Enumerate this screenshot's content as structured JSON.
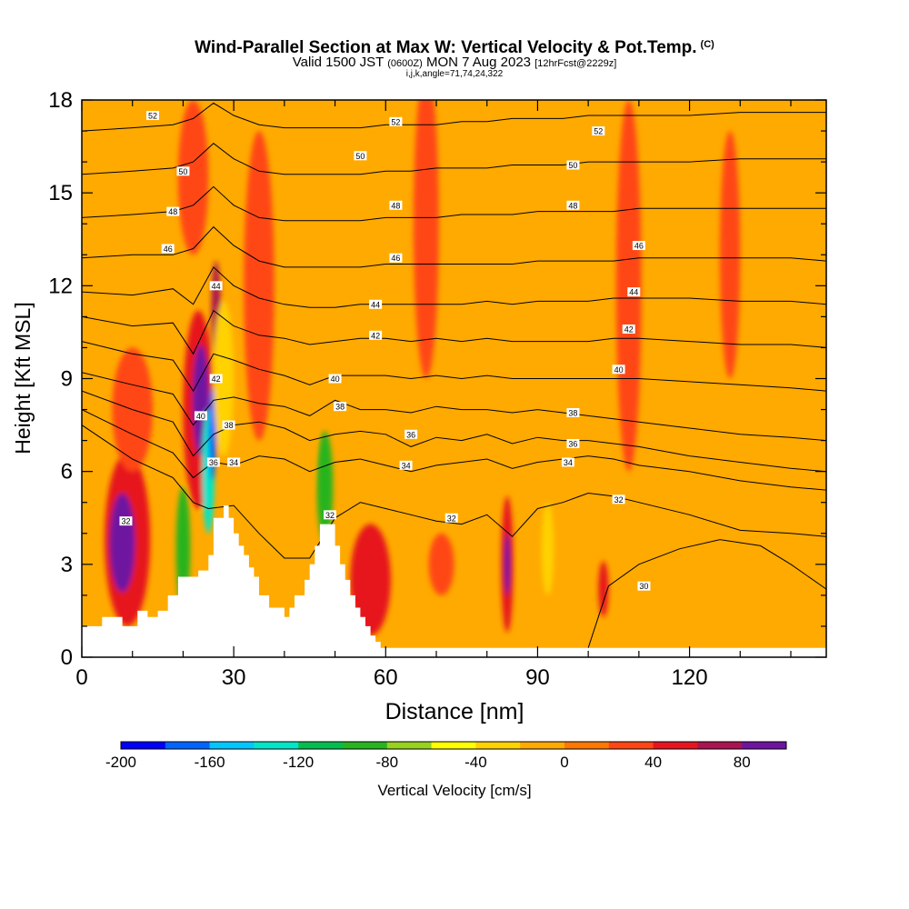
{
  "title": {
    "main": "Wind-Parallel Section at Max W: Vertical Velocity & Pot.Temp.",
    "copyright": "(C)",
    "valid_prefix": "Valid 1500 JST",
    "valid_utc": "(0600Z)",
    "valid_date": "MON 7 Aug 2023",
    "forecast": "[12hrFcst@2229z]",
    "section_params": "i,j,k,angle=71,74,24,322"
  },
  "chart_data": {
    "type": "heatmap",
    "xlabel": "Distance [nm]",
    "ylabel": "Height [Kft MSL]",
    "xlim": [
      0,
      147
    ],
    "ylim": [
      0,
      18
    ],
    "x_ticks": [
      0,
      30,
      60,
      90,
      120
    ],
    "y_ticks": [
      0,
      3,
      6,
      9,
      12,
      15,
      18
    ],
    "x_tick_labels": [
      "0",
      "30",
      "60",
      "90",
      "120"
    ],
    "y_tick_labels": [
      "0",
      "3",
      "6",
      "9",
      "12",
      "15",
      "18"
    ],
    "colorbar": {
      "label": "Vertical Velocity [cm/s]",
      "min": -200,
      "max": 100,
      "step": 20,
      "tick_values": [
        -200,
        -160,
        -120,
        -80,
        -40,
        0,
        40,
        80
      ],
      "tick_labels": [
        "-200",
        "-160",
        "-120",
        "-80",
        "-40",
        "0",
        "40",
        "80"
      ],
      "colors": [
        "#0000ff",
        "#0064ff",
        "#00c8ff",
        "#00e6c8",
        "#00be50",
        "#28b41e",
        "#96d21e",
        "#ffff00",
        "#ffd200",
        "#ffaa00",
        "#ff7800",
        "#ff4614",
        "#e6141e",
        "#aa1450",
        "#6e14a0"
      ]
    },
    "background_color": "#ffaa00",
    "terrain": {
      "x": [
        0,
        4,
        4,
        8,
        8,
        11,
        11,
        13,
        13,
        15,
        15,
        17,
        17,
        19,
        19,
        21,
        21,
        23,
        23,
        25,
        25,
        26,
        26,
        28,
        28,
        29,
        29,
        30,
        30,
        31,
        31,
        32,
        32,
        33,
        33,
        34,
        34,
        35,
        35,
        37,
        37,
        40,
        40,
        41,
        41,
        42,
        42,
        44,
        44,
        45,
        45,
        46,
        46,
        47,
        47,
        50,
        50,
        51,
        51,
        52,
        52,
        53,
        53,
        54,
        54,
        55,
        55,
        56,
        56,
        57,
        57,
        58,
        58,
        59,
        59,
        63,
        63,
        67,
        67,
        100,
        100,
        142,
        142,
        147
      ],
      "y": [
        1.0,
        1.0,
        1.3,
        1.3,
        1.0,
        1.0,
        1.5,
        1.5,
        1.3,
        1.3,
        1.5,
        1.5,
        2.0,
        2.0,
        2.6,
        2.6,
        2.6,
        2.6,
        2.8,
        2.8,
        3.3,
        3.3,
        4.5,
        4.5,
        4.9,
        4.9,
        4.5,
        4.5,
        4.0,
        4.0,
        3.6,
        3.6,
        3.3,
        3.3,
        2.9,
        2.9,
        2.6,
        2.6,
        2.0,
        2.0,
        1.6,
        1.6,
        1.3,
        1.3,
        1.6,
        1.6,
        2.0,
        2.0,
        2.5,
        2.5,
        3.0,
        3.0,
        3.6,
        3.6,
        4.3,
        4.3,
        3.6,
        3.6,
        3.0,
        3.0,
        2.5,
        2.5,
        2.0,
        2.0,
        1.6,
        1.6,
        1.3,
        1.3,
        1.0,
        1.0,
        0.7,
        0.7,
        0.5,
        0.5,
        0.3,
        0.3,
        0.3,
        0.3,
        0.3,
        0.3,
        0.3,
        0.3,
        0.3,
        0.3
      ]
    },
    "vertical_velocity_blobs": [
      {
        "x": 9,
        "y": 3.8,
        "rx": 4.5,
        "ry": 2.8,
        "value": 40
      },
      {
        "x": 8,
        "y": 3.7,
        "rx": 2.5,
        "ry": 1.6,
        "value": 80
      },
      {
        "x": 23,
        "y": 8.0,
        "rx": 3.0,
        "ry": 3.2,
        "value": 40
      },
      {
        "x": 23.5,
        "y": 8.3,
        "rx": 1.6,
        "ry": 1.8,
        "value": 80
      },
      {
        "x": 26.5,
        "y": 11.2,
        "rx": 0.9,
        "ry": 1.6,
        "value": 60
      },
      {
        "x": 20,
        "y": 3.5,
        "rx": 1.4,
        "ry": 2.0,
        "value": -100
      },
      {
        "x": 25,
        "y": 6.0,
        "rx": 1.2,
        "ry": 2.0,
        "value": -140
      },
      {
        "x": 25.8,
        "y": 7.2,
        "rx": 0.7,
        "ry": 1.5,
        "value": -180
      },
      {
        "x": 48,
        "y": 5.5,
        "rx": 1.6,
        "ry": 1.8,
        "value": -100
      },
      {
        "x": 28,
        "y": 9.0,
        "rx": 2.0,
        "ry": 2.5,
        "value": -40
      },
      {
        "x": 84,
        "y": 3.0,
        "rx": 1.2,
        "ry": 2.2,
        "value": 40
      },
      {
        "x": 84,
        "y": 3.0,
        "rx": 0.6,
        "ry": 1.0,
        "value": 80
      },
      {
        "x": 57,
        "y": 2.5,
        "rx": 4.0,
        "ry": 1.8,
        "value": 40
      },
      {
        "x": 103,
        "y": 2.2,
        "rx": 1.0,
        "ry": 0.9,
        "value": 40
      },
      {
        "x": 71,
        "y": 3.0,
        "rx": 2.5,
        "ry": 1.0,
        "value": 20
      },
      {
        "x": 92,
        "y": 3.5,
        "rx": 1.2,
        "ry": 1.5,
        "value": -40
      },
      {
        "x": 35,
        "y": 12.0,
        "rx": 3.0,
        "ry": 5.0,
        "value": 20
      },
      {
        "x": 22,
        "y": 15.5,
        "rx": 3.0,
        "ry": 2.5,
        "value": 20
      },
      {
        "x": 68,
        "y": 14.0,
        "rx": 2.5,
        "ry": 5.0,
        "value": 20
      },
      {
        "x": 108,
        "y": 12.0,
        "rx": 2.5,
        "ry": 6.0,
        "value": 20
      },
      {
        "x": 128,
        "y": 13.0,
        "rx": 2.0,
        "ry": 4.0,
        "value": 20
      },
      {
        "x": 10,
        "y": 8.0,
        "rx": 4.0,
        "ry": 2.0,
        "value": 20
      },
      {
        "x": 44,
        "y": 9.0,
        "rx": 2.0,
        "ry": 4.5,
        "value": -20
      }
    ],
    "theta_contours": [
      {
        "value": 30,
        "x": [
          100,
          104,
          110,
          118,
          126,
          134,
          140,
          147
        ],
        "y": [
          0.3,
          2.3,
          3.0,
          3.5,
          3.8,
          3.6,
          3.0,
          2.2
        ]
      },
      {
        "value": 32,
        "x": [
          0,
          10,
          18,
          22,
          25,
          30,
          35,
          40,
          45,
          50,
          55,
          60,
          65,
          70,
          75,
          80,
          85,
          90,
          95,
          100,
          105,
          110,
          120,
          130,
          140,
          147
        ],
        "y": [
          7.5,
          6.4,
          5.8,
          5.0,
          4.8,
          4.9,
          4.0,
          3.2,
          3.2,
          4.5,
          5.0,
          4.8,
          4.6,
          4.4,
          4.3,
          4.6,
          3.9,
          4.8,
          5.0,
          5.3,
          5.2,
          5.0,
          4.6,
          4.1,
          4.0,
          3.9
        ]
      },
      {
        "value": 34,
        "x": [
          0,
          10,
          18,
          22,
          26,
          30,
          35,
          40,
          45,
          50,
          55,
          60,
          65,
          70,
          75,
          80,
          85,
          90,
          95,
          100,
          105,
          110,
          120,
          130,
          140,
          147
        ],
        "y": [
          8.0,
          7.2,
          6.6,
          5.8,
          6.3,
          6.2,
          6.5,
          6.4,
          6.0,
          6.3,
          6.4,
          6.2,
          6.0,
          6.2,
          6.3,
          6.4,
          6.1,
          6.3,
          6.4,
          6.5,
          6.4,
          6.2,
          6.0,
          5.7,
          5.5,
          5.4
        ]
      },
      {
        "value": 36,
        "x": [
          0,
          10,
          18,
          22,
          26,
          30,
          35,
          40,
          45,
          50,
          55,
          60,
          65,
          70,
          75,
          80,
          85,
          90,
          95,
          100,
          105,
          110,
          120,
          130,
          140,
          147
        ],
        "y": [
          8.6,
          8.0,
          7.6,
          6.5,
          7.2,
          7.5,
          7.6,
          7.4,
          7.0,
          7.2,
          7.3,
          7.2,
          6.8,
          7.1,
          7.0,
          7.2,
          6.9,
          7.1,
          7.0,
          7.0,
          6.9,
          6.8,
          6.5,
          6.3,
          6.1,
          6.0
        ]
      },
      {
        "value": 38,
        "x": [
          0,
          10,
          18,
          22,
          26,
          30,
          35,
          40,
          45,
          50,
          55,
          60,
          65,
          70,
          75,
          80,
          85,
          90,
          95,
          100,
          105,
          110,
          120,
          130,
          140,
          147
        ],
        "y": [
          9.2,
          8.8,
          8.5,
          7.5,
          8.3,
          8.4,
          8.2,
          8.1,
          7.8,
          8.3,
          8.0,
          8.0,
          7.9,
          8.1,
          8.0,
          8.0,
          7.9,
          8.0,
          7.9,
          7.8,
          7.7,
          7.6,
          7.4,
          7.2,
          7.1,
          7.0
        ]
      },
      {
        "value": 40,
        "x": [
          0,
          10,
          18,
          22,
          26,
          30,
          35,
          40,
          45,
          50,
          55,
          60,
          65,
          70,
          75,
          80,
          85,
          90,
          95,
          100,
          105,
          110,
          120,
          130,
          140,
          147
        ],
        "y": [
          10.2,
          9.8,
          9.6,
          8.6,
          9.8,
          9.6,
          9.3,
          9.1,
          8.8,
          9.1,
          9.1,
          9.1,
          9.0,
          9.1,
          9.0,
          9.1,
          9.0,
          9.0,
          9.0,
          9.0,
          9.0,
          9.0,
          8.9,
          8.8,
          8.7,
          8.6
        ]
      },
      {
        "value": 42,
        "x": [
          0,
          10,
          18,
          22,
          26,
          30,
          35,
          40,
          45,
          50,
          55,
          60,
          65,
          70,
          75,
          80,
          85,
          90,
          95,
          100,
          105,
          110,
          120,
          130,
          140,
          147
        ],
        "y": [
          11.0,
          10.7,
          10.8,
          9.8,
          11.2,
          10.7,
          10.4,
          10.3,
          10.1,
          10.2,
          10.3,
          10.3,
          10.2,
          10.3,
          10.2,
          10.3,
          10.2,
          10.2,
          10.2,
          10.2,
          10.3,
          10.3,
          10.2,
          10.1,
          10.1,
          10.0
        ]
      },
      {
        "value": 44,
        "x": [
          0,
          10,
          18,
          22,
          26,
          30,
          35,
          40,
          45,
          50,
          55,
          60,
          65,
          70,
          75,
          80,
          85,
          90,
          95,
          100,
          105,
          110,
          120,
          130,
          140,
          147
        ],
        "y": [
          11.8,
          11.7,
          11.9,
          11.4,
          12.6,
          12.0,
          11.6,
          11.4,
          11.3,
          11.3,
          11.4,
          11.4,
          11.4,
          11.4,
          11.4,
          11.5,
          11.4,
          11.5,
          11.5,
          11.5,
          11.6,
          11.6,
          11.6,
          11.5,
          11.5,
          11.4
        ]
      },
      {
        "value": 46,
        "x": [
          0,
          10,
          18,
          22,
          26,
          30,
          35,
          40,
          45,
          50,
          55,
          60,
          65,
          70,
          75,
          80,
          85,
          90,
          95,
          100,
          105,
          110,
          120,
          130,
          140,
          147
        ],
        "y": [
          12.9,
          13.0,
          13.0,
          13.2,
          13.9,
          13.3,
          12.8,
          12.6,
          12.6,
          12.6,
          12.6,
          12.7,
          12.7,
          12.7,
          12.7,
          12.7,
          12.7,
          12.8,
          12.8,
          12.8,
          12.8,
          12.9,
          12.9,
          12.9,
          12.9,
          12.8
        ]
      },
      {
        "value": 48,
        "x": [
          0,
          10,
          18,
          22,
          26,
          30,
          35,
          40,
          45,
          50,
          55,
          60,
          65,
          70,
          75,
          80,
          85,
          90,
          95,
          100,
          105,
          110,
          120,
          130,
          140,
          147
        ],
        "y": [
          14.2,
          14.3,
          14.4,
          14.6,
          15.2,
          14.6,
          14.2,
          14.1,
          14.1,
          14.1,
          14.1,
          14.2,
          14.2,
          14.2,
          14.3,
          14.3,
          14.3,
          14.4,
          14.4,
          14.4,
          14.4,
          14.5,
          14.5,
          14.5,
          14.5,
          14.5
        ]
      },
      {
        "value": 50,
        "x": [
          0,
          10,
          18,
          22,
          26,
          30,
          35,
          40,
          45,
          50,
          55,
          60,
          65,
          70,
          75,
          80,
          85,
          90,
          95,
          100,
          105,
          110,
          120,
          130,
          140,
          147
        ],
        "y": [
          15.6,
          15.7,
          15.8,
          16.0,
          16.6,
          16.1,
          15.7,
          15.6,
          15.6,
          15.6,
          15.6,
          15.7,
          15.7,
          15.8,
          15.8,
          15.8,
          15.9,
          15.9,
          15.9,
          16.0,
          16.0,
          16.0,
          16.0,
          16.1,
          16.1,
          16.1
        ]
      },
      {
        "value": 52,
        "x": [
          0,
          10,
          18,
          22,
          26,
          30,
          35,
          40,
          45,
          50,
          55,
          60,
          65,
          70,
          75,
          80,
          85,
          90,
          95,
          100,
          105,
          110,
          120,
          130,
          140,
          147
        ],
        "y": [
          17.0,
          17.1,
          17.2,
          17.4,
          17.9,
          17.5,
          17.2,
          17.1,
          17.1,
          17.1,
          17.1,
          17.2,
          17.2,
          17.2,
          17.3,
          17.3,
          17.4,
          17.4,
          17.4,
          17.5,
          17.5,
          17.5,
          17.5,
          17.6,
          17.6,
          17.6
        ]
      }
    ],
    "contour_labels": [
      {
        "text": "52",
        "x": 14,
        "y": 17.5
      },
      {
        "text": "52",
        "x": 62,
        "y": 17.3
      },
      {
        "text": "52",
        "x": 102,
        "y": 17.0
      },
      {
        "text": "50",
        "x": 20,
        "y": 15.7
      },
      {
        "text": "50",
        "x": 55,
        "y": 16.2
      },
      {
        "text": "50",
        "x": 97,
        "y": 15.9
      },
      {
        "text": "48",
        "x": 18,
        "y": 14.4
      },
      {
        "text": "48",
        "x": 62,
        "y": 14.6
      },
      {
        "text": "48",
        "x": 97,
        "y": 14.6
      },
      {
        "text": "46",
        "x": 17,
        "y": 13.2
      },
      {
        "text": "46",
        "x": 62,
        "y": 12.9
      },
      {
        "text": "46",
        "x": 110,
        "y": 13.3
      },
      {
        "text": "44",
        "x": 26.5,
        "y": 12.0
      },
      {
        "text": "44",
        "x": 58,
        "y": 11.4
      },
      {
        "text": "44",
        "x": 109,
        "y": 11.8
      },
      {
        "text": "42",
        "x": 26.5,
        "y": 9.0
      },
      {
        "text": "42",
        "x": 58,
        "y": 10.4
      },
      {
        "text": "42",
        "x": 108,
        "y": 10.6
      },
      {
        "text": "40",
        "x": 23.5,
        "y": 7.8
      },
      {
        "text": "40",
        "x": 50,
        "y": 9.0
      },
      {
        "text": "40",
        "x": 106,
        "y": 9.3
      },
      {
        "text": "38",
        "x": 29,
        "y": 7.5
      },
      {
        "text": "38",
        "x": 51,
        "y": 8.1
      },
      {
        "text": "38",
        "x": 97,
        "y": 7.9
      },
      {
        "text": "36",
        "x": 26,
        "y": 6.3
      },
      {
        "text": "36",
        "x": 65,
        "y": 7.2
      },
      {
        "text": "36",
        "x": 97,
        "y": 6.9
      },
      {
        "text": "34",
        "x": 30,
        "y": 6.3
      },
      {
        "text": "34",
        "x": 64,
        "y": 6.2
      },
      {
        "text": "34",
        "x": 96,
        "y": 6.3
      },
      {
        "text": "32",
        "x": 49,
        "y": 4.6
      },
      {
        "text": "32",
        "x": 73,
        "y": 4.5
      },
      {
        "text": "32",
        "x": 106,
        "y": 5.1
      },
      {
        "text": "32",
        "x": 8.7,
        "y": 4.4
      },
      {
        "text": "30",
        "x": 111,
        "y": 2.3
      }
    ]
  }
}
